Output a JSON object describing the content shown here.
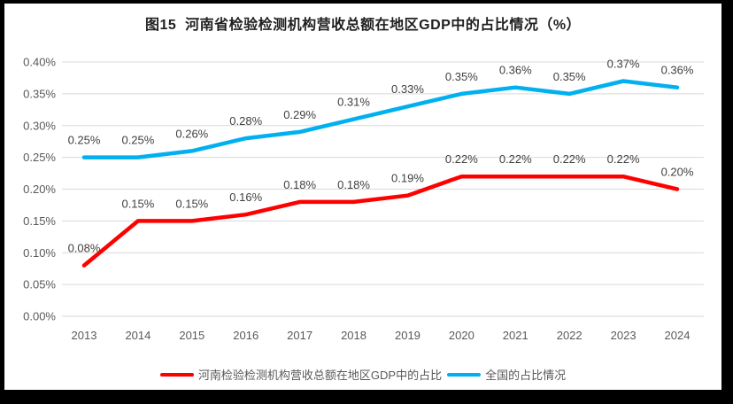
{
  "chart_data": {
    "type": "line",
    "title": "图15  河南省检验检测机构营收总额在地区GDP中的占比情况（%）",
    "categories": [
      "2013",
      "2014",
      "2015",
      "2016",
      "2017",
      "2018",
      "2019",
      "2020",
      "2021",
      "2022",
      "2023",
      "2024"
    ],
    "series": [
      {
        "name": "河南检验检测机构营收总额在地区GDP中的占比",
        "color": "#FF0000",
        "values": [
          0.08,
          0.15,
          0.15,
          0.16,
          0.18,
          0.18,
          0.19,
          0.22,
          0.22,
          0.22,
          0.22,
          0.2
        ],
        "labels": [
          "0.08%",
          "0.15%",
          "0.15%",
          "0.16%",
          "0.18%",
          "0.18%",
          "0.19%",
          "0.22%",
          "0.22%",
          "0.22%",
          "0.22%",
          "0.20%"
        ]
      },
      {
        "name": "全国的占比情况",
        "color": "#00B0F0",
        "values": [
          0.25,
          0.25,
          0.26,
          0.28,
          0.29,
          0.31,
          0.33,
          0.35,
          0.36,
          0.35,
          0.37,
          0.36
        ],
        "labels": [
          "0.25%",
          "0.25%",
          "0.26%",
          "0.28%",
          "0.29%",
          "0.31%",
          "0.33%",
          "0.35%",
          "0.36%",
          "0.35%",
          "0.37%",
          "0.36%"
        ]
      }
    ],
    "ylim": [
      0,
      0.4
    ],
    "ytick_labels": [
      "0.00%",
      "0.05%",
      "0.10%",
      "0.15%",
      "0.20%",
      "0.25%",
      "0.30%",
      "0.35%",
      "0.40%"
    ],
    "grid": true,
    "legend_position": "bottom",
    "colors": {
      "gridline": "#D9D9D9",
      "axis_text": "#595959",
      "data_label_text": "#404040",
      "title_text": "#1f1f1f",
      "background": "#ffffff",
      "frame": "#000000"
    }
  }
}
